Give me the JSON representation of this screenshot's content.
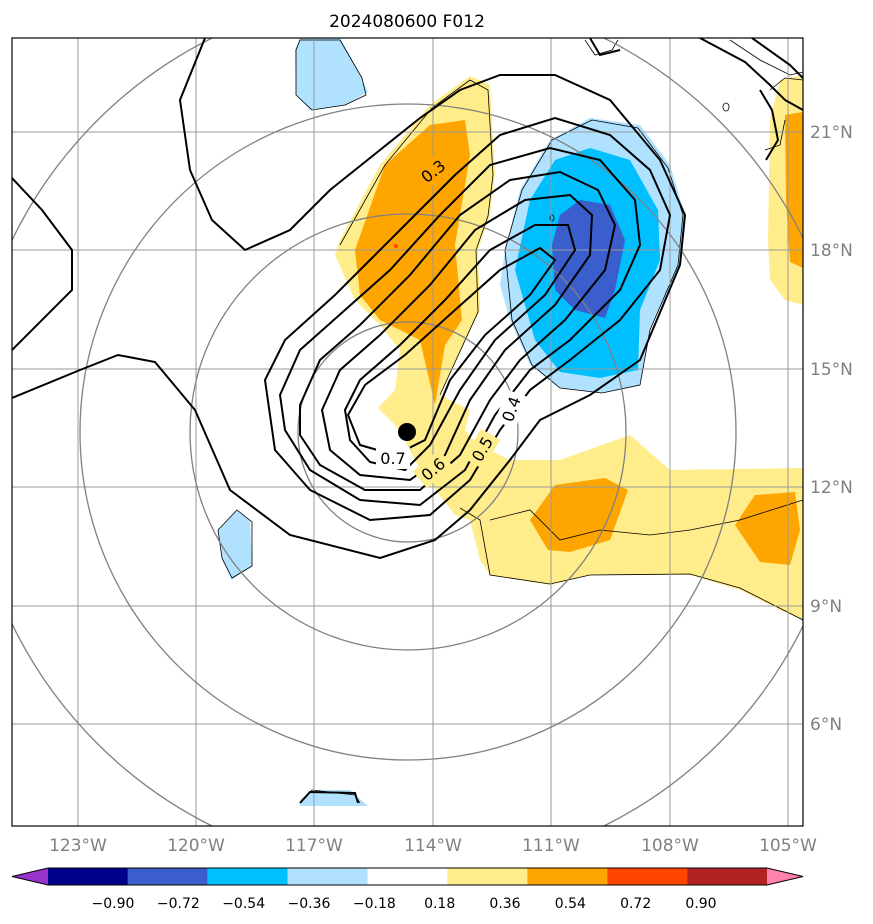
{
  "chart_data": {
    "type": "map-contour",
    "title": "2024080600 F012",
    "lon_ticks": [
      "123°W",
      "120°W",
      "117°W",
      "114°W",
      "111°W",
      "108°W",
      "105°W"
    ],
    "lat_ticks": [
      "21°N",
      "18°N",
      "15°N",
      "12°N",
      "9°N",
      "6°N"
    ],
    "colorbar": {
      "levels": [
        "−0.90",
        "−0.72",
        "−0.54",
        "−0.36",
        "−0.18",
        "0.18",
        "0.36",
        "0.54",
        "0.72",
        "0.90"
      ],
      "colors": [
        "#9932cc",
        "#00008b",
        "#3a5fcd",
        "#00bfff",
        "#b0e2ff",
        "#ffffff",
        "#ffec8b",
        "#ffa500",
        "#ff4500",
        "#b22222",
        "#ff82ab"
      ]
    },
    "contour_labels": [
      "0.3",
      "0.4",
      "0.5",
      "0.6",
      "0.7"
    ],
    "storm_center": {
      "lon": -114.7,
      "lat": 13.4
    },
    "grid": true
  }
}
